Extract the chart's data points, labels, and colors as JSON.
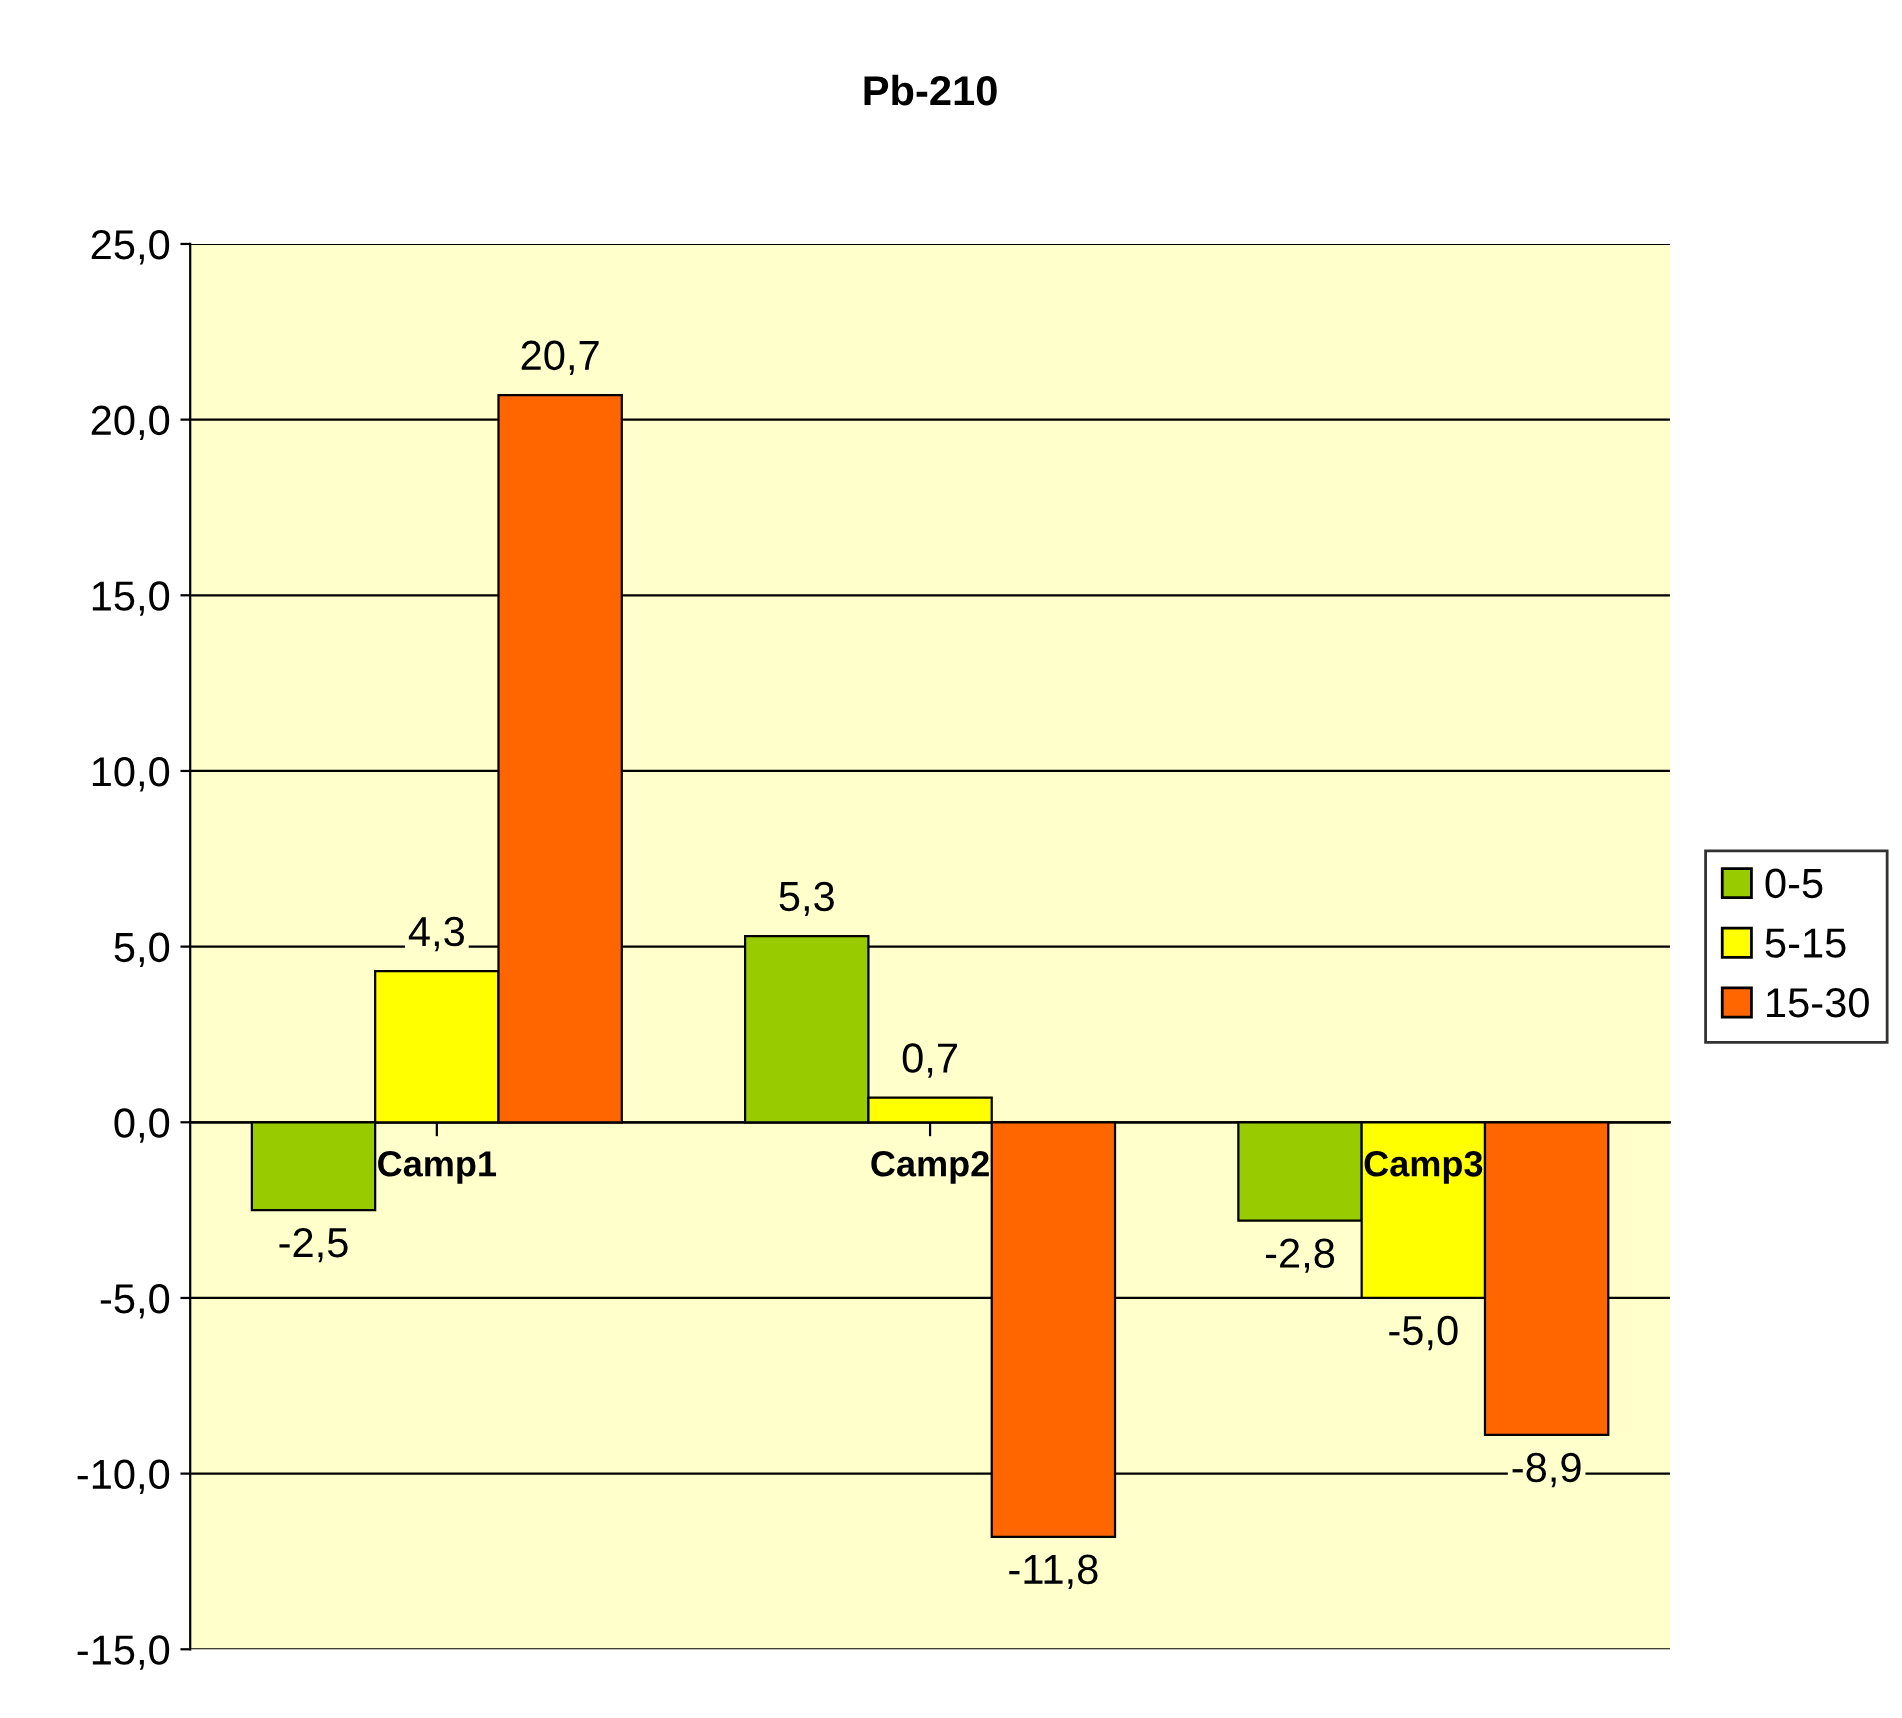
{
  "chart_data": {
    "type": "bar",
    "title": "Pb-210",
    "categories": [
      "Camp1",
      "Camp2",
      "Camp3"
    ],
    "series": [
      {
        "name": "0-5",
        "color": "#99cc00",
        "values": [
          -2.5,
          5.3,
          -2.8
        ],
        "value_labels": [
          "-2,5",
          "5,3",
          "-2,8"
        ]
      },
      {
        "name": "5-15",
        "color": "#ffff00",
        "values": [
          4.3,
          0.7,
          -5.0
        ],
        "value_labels": [
          "4,3",
          "0,7",
          "-5,0"
        ]
      },
      {
        "name": "15-30",
        "color": "#ff6600",
        "values": [
          20.7,
          -11.8,
          -8.9
        ],
        "value_labels": [
          "20,7",
          "-11,8",
          "-8,9"
        ]
      }
    ],
    "ylim": [
      -15,
      25
    ],
    "yticks": [
      {
        "value": -15,
        "label": "-15,0"
      },
      {
        "value": -10,
        "label": "-10,0"
      },
      {
        "value": -5,
        "label": "-5,0"
      },
      {
        "value": 0,
        "label": "0,0"
      },
      {
        "value": 5,
        "label": "5,0"
      },
      {
        "value": 10,
        "label": "10,0"
      },
      {
        "value": 15,
        "label": "15,0"
      },
      {
        "value": 20,
        "label": "20,0"
      },
      {
        "value": 25,
        "label": "25,0"
      }
    ],
    "grid": "y",
    "legend": "right"
  }
}
